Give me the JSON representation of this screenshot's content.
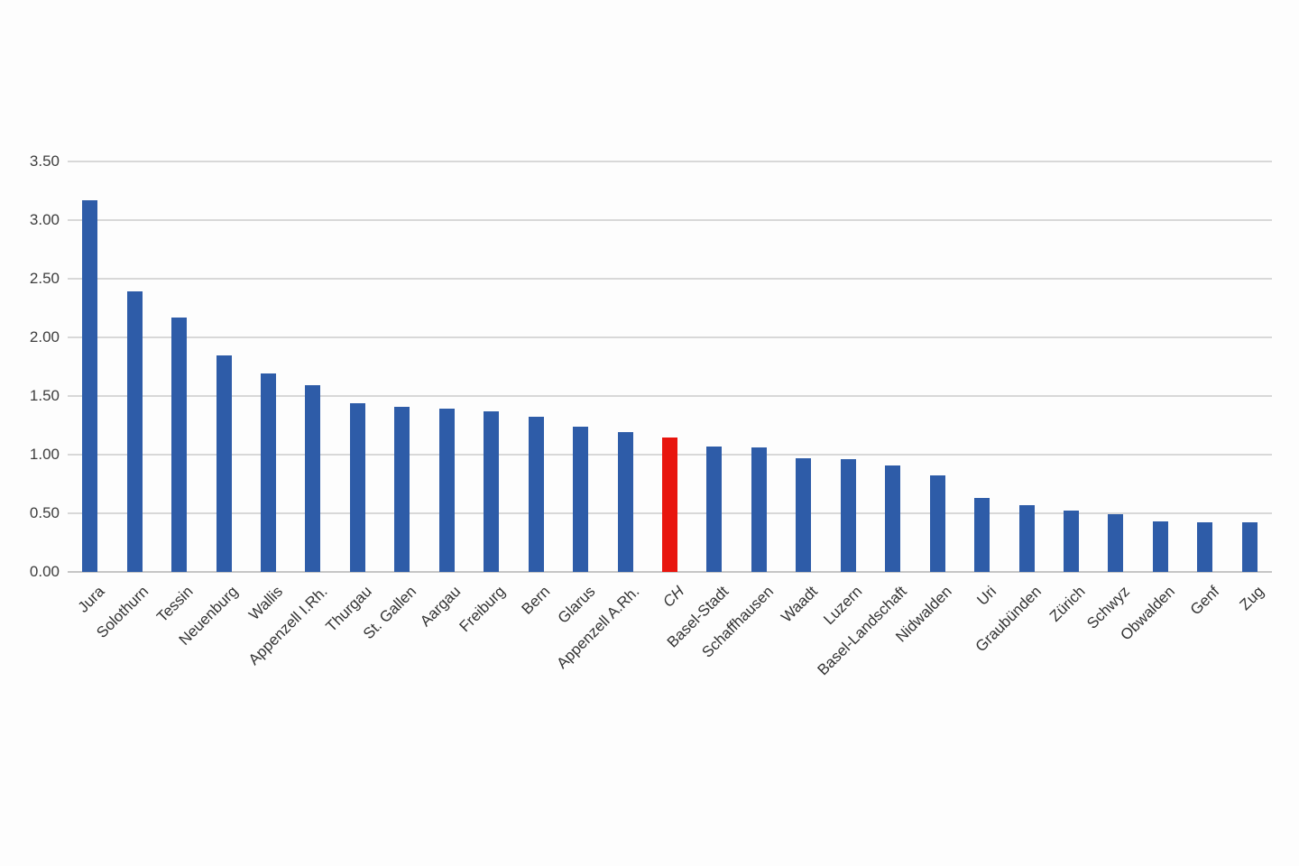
{
  "chart_data": {
    "type": "bar",
    "title": "",
    "xlabel": "",
    "ylabel": "",
    "legend_position": "none",
    "grid": true,
    "ylim": [
      0,
      3.5
    ],
    "ytick_labels": [
      "0.00",
      "0.50",
      "1.00",
      "1.50",
      "2.00",
      "2.50",
      "3.00",
      "3.50"
    ],
    "ytick_values": [
      0,
      0.5,
      1,
      1.5,
      2,
      2.5,
      3,
      3.5
    ],
    "categories": [
      "Jura",
      "Solothurn",
      "Tessin",
      "Neuenburg",
      "Wallis",
      "Appenzell I.Rh.",
      "Thurgau",
      "St. Gallen",
      "Aargau",
      "Freiburg",
      "Bern",
      "Glarus",
      "Appenzell A.Rh.",
      "CH",
      "Basel-Stadt",
      "Schaffhausen",
      "Waadt",
      "Luzern",
      "Basel-Landschaft",
      "Nidwalden",
      "Uri",
      "Graubünden",
      "Zürich",
      "Schwyz",
      "Obwalden",
      "Genf",
      "Zug"
    ],
    "values": [
      3.17,
      2.39,
      2.17,
      1.85,
      1.69,
      1.59,
      1.44,
      1.41,
      1.39,
      1.37,
      1.32,
      1.24,
      1.19,
      1.15,
      1.07,
      1.06,
      0.97,
      0.96,
      0.91,
      0.82,
      0.63,
      0.57,
      0.52,
      0.49,
      0.43,
      0.42,
      0.42
    ],
    "highlight_category": "CH",
    "colors": {
      "bar": "#2e5ca8",
      "highlight": "#e8150e",
      "gridline": "#d8d8d8",
      "axis_text": "#3d3d3d"
    }
  }
}
